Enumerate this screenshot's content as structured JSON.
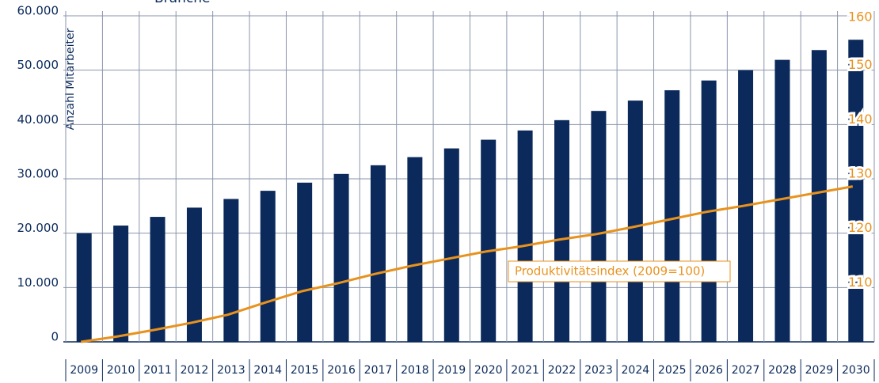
{
  "chart_data": {
    "type": "bar",
    "title": "Branche",
    "ylabel": "Anzahl Mitarbeiter",
    "categories": [
      "2009",
      "2010",
      "2011",
      "2012",
      "2013",
      "2014",
      "2015",
      "2016",
      "2017",
      "2018",
      "2019",
      "2020",
      "2021",
      "2022",
      "2023",
      "2024",
      "2025",
      "2026",
      "2027",
      "2028",
      "2029",
      "2030"
    ],
    "series": [
      {
        "name": "Anzahl Mitarbeiter",
        "type": "bar",
        "color": "#0b2a5b",
        "values": [
          20000,
          21400,
          23000,
          24700,
          26300,
          27800,
          29300,
          30900,
          32500,
          34000,
          35600,
          37200,
          38900,
          40800,
          42500,
          44400,
          46300,
          48100,
          50000,
          51900,
          53700,
          55600
        ]
      },
      {
        "name": "Produktivitätsindex (2009=100)",
        "type": "line",
        "axis": "y2",
        "color": "#e8921e",
        "values": [
          100,
          101,
          102.2,
          103.5,
          105,
          107.2,
          109.3,
          110.8,
          112.5,
          114,
          115.3,
          116.6,
          117.6,
          118.8,
          119.8,
          121.1,
          122.5,
          123.9,
          125,
          126.2,
          127.4,
          128.6
        ]
      }
    ],
    "ylim": [
      0,
      60000
    ],
    "yticks": [
      {
        "value": 0,
        "label": "0"
      },
      {
        "value": 10000,
        "label": "10.000"
      },
      {
        "value": 20000,
        "label": "20.000"
      },
      {
        "value": 30000,
        "label": "30.000"
      },
      {
        "value": 40000,
        "label": "40.000"
      },
      {
        "value": 50000,
        "label": "50.000"
      },
      {
        "value": 60000,
        "label": "60.000"
      }
    ],
    "y2lim": [
      100,
      160
    ],
    "y2ticks": [
      110,
      120,
      130,
      140,
      150,
      160
    ],
    "grid": true
  }
}
